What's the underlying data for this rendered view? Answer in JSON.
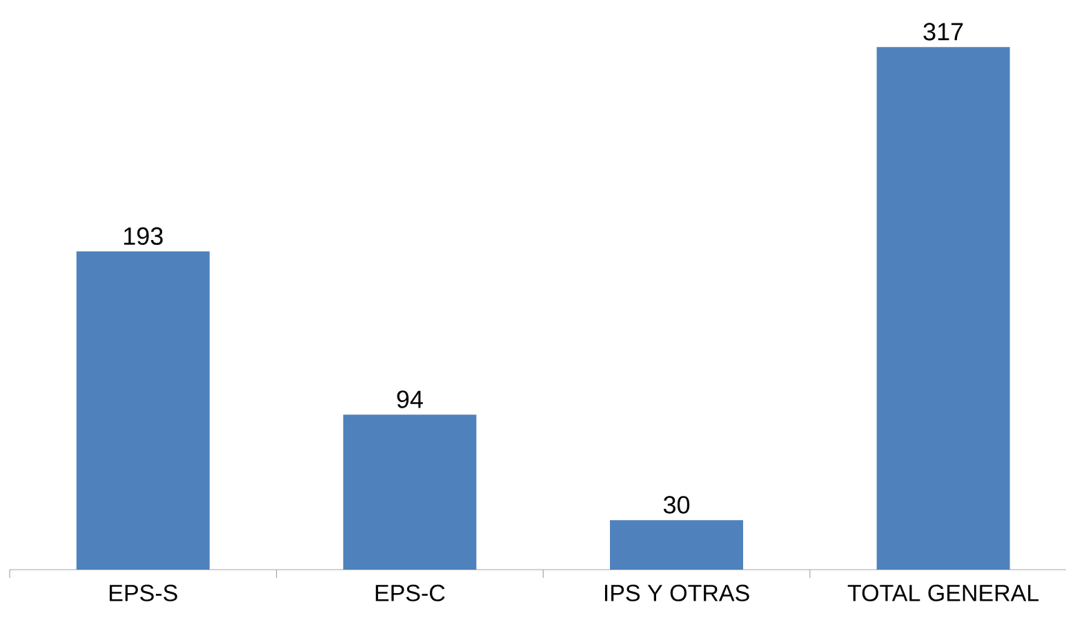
{
  "chart_data": {
    "type": "bar",
    "categories": [
      "EPS-S",
      "EPS-C",
      "IPS Y OTRAS",
      "TOTAL GENERAL"
    ],
    "values": [
      193,
      94,
      30,
      317
    ],
    "color": "#4f81bd",
    "data_labels": true
  }
}
